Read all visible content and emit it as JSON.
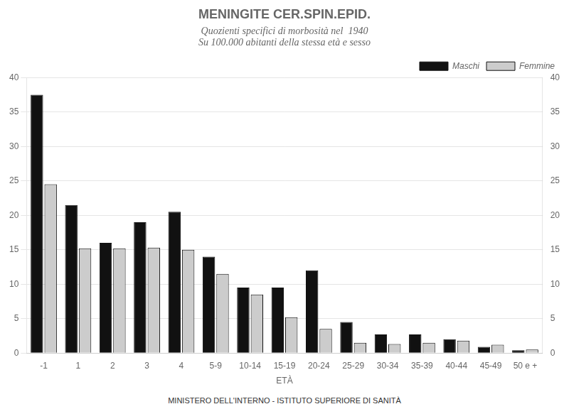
{
  "chart_data": {
    "type": "bar",
    "title": "MENINGITE CER.SPIN.EPID.",
    "subtitle": [
      "Quozienti specifici di morbosità nel  1940",
      "Su 100.000 abitanti della stessa età e sesso"
    ],
    "x_label": "ETÀ",
    "annotations": [
      "MINISTERO DELL'INTERNO  -  ISTITUTO SUPERIORE DI SANITÀ"
    ],
    "categories": [
      "-1",
      "1",
      "2",
      "3",
      "4",
      "5-9",
      "10-14",
      "15-19",
      "20-24",
      "25-29",
      "30-34",
      "35-39",
      "40-44",
      "45-49",
      "50 e +"
    ],
    "series": [
      {
        "name": "Maschi",
        "color": "#111111",
        "values": [
          37.5,
          21.5,
          16.0,
          19.0,
          20.5,
          14.0,
          9.5,
          9.5,
          12.0,
          4.5,
          2.7,
          2.7,
          2.0,
          0.9,
          0.4
        ]
      },
      {
        "name": "Femmine",
        "color": "#cccccc",
        "values": [
          24.5,
          15.2,
          15.2,
          15.3,
          15.0,
          11.5,
          8.5,
          5.2,
          3.5,
          1.5,
          1.3,
          1.5,
          1.8,
          1.2,
          0.5
        ]
      }
    ],
    "ylim": [
      0,
      40
    ],
    "yticks": [
      0,
      5,
      10,
      15,
      20,
      25,
      30,
      35,
      40
    ],
    "y2lim": [
      0,
      40
    ],
    "y2ticks": [
      0,
      5,
      10,
      15,
      20,
      25,
      30,
      35,
      40
    ],
    "grid": true,
    "legend": "upper right"
  }
}
